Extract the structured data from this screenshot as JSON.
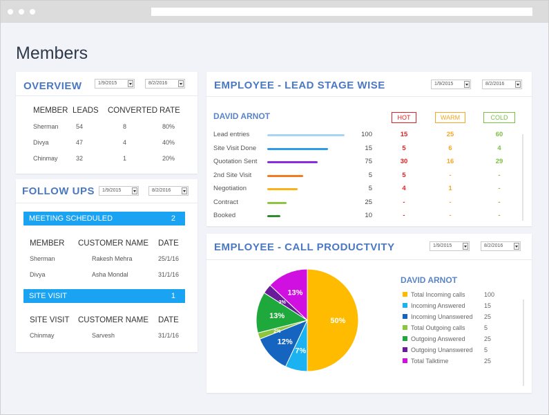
{
  "page": {
    "title": "Members"
  },
  "overview": {
    "title": "OVERVIEW",
    "date_from": "1/9/2015",
    "date_to": "8/2/2016",
    "headers": [
      "MEMBER",
      "LEADS",
      "CONVERTED",
      "RATE"
    ],
    "rows": [
      [
        "Sherman",
        "54",
        "8",
        "80%"
      ],
      [
        "Divya",
        "47",
        "4",
        "40%"
      ],
      [
        "Chinmay",
        "32",
        "1",
        "20%"
      ]
    ]
  },
  "followups": {
    "title": "FOLLOW UPS",
    "date_from": "1/9/2015",
    "date_to": "8/2/2016",
    "meeting": {
      "label": "MEETING SCHEDULED",
      "count": "2",
      "headers": [
        "MEMBER",
        "CUSTOMER  NAME",
        "DATE"
      ],
      "rows": [
        [
          "Sherman",
          "Rakesh Mehra",
          "25/1/16"
        ],
        [
          "Divya",
          "Asha Mondal",
          "31/1/16"
        ]
      ]
    },
    "site_visit": {
      "label": "SITE VISIT",
      "count": "1",
      "headers": [
        "SITE VISIT",
        "CUSTOMER  NAME",
        "DATE"
      ],
      "rows": [
        [
          "Chinmay",
          "Sarvesh",
          "31/1/16"
        ]
      ]
    }
  },
  "lead_stage": {
    "title": "EMPLOYEE  - LEAD STAGE WISE",
    "date_from": "1/9/2015",
    "date_to": "8/2/2016",
    "employee": "DAVID ARNOT",
    "heat_headers": [
      "HOT",
      "WARM",
      "COLD"
    ],
    "heat_colors": [
      "#e02020",
      "#f5a623",
      "#7ac143"
    ],
    "stages": [
      {
        "label": "Lead entries",
        "value": "100",
        "bar": 1.0,
        "color": "#a8d4f5",
        "hot": "15",
        "warm": "25",
        "cold": "60"
      },
      {
        "label": "Site Visit Done",
        "value": "15",
        "bar": 0.79,
        "color": "#2f9be8",
        "hot": "5",
        "warm": "6",
        "cold": "4"
      },
      {
        "label": "Quotation Sent",
        "value": "75",
        "bar": 0.65,
        "color": "#8a2be2",
        "hot": "30",
        "warm": "16",
        "cold": "29"
      },
      {
        "label": "2nd Site Visit",
        "value": "5",
        "bar": 0.46,
        "color": "#f47a20",
        "hot": "5",
        "warm": "-",
        "cold": "-"
      },
      {
        "label": "Negotiation",
        "value": "5",
        "bar": 0.39,
        "color": "#fbb217",
        "hot": "4",
        "warm": "1",
        "cold": "-"
      },
      {
        "label": "Contract",
        "value": "25",
        "bar": 0.25,
        "color": "#8cc63f",
        "hot": "-",
        "warm": "-",
        "cold": "-"
      },
      {
        "label": "Booked",
        "value": "10",
        "bar": 0.17,
        "color": "#2e8b2e",
        "hot": "-",
        "warm": "-",
        "cold": "-"
      }
    ]
  },
  "call_productivity": {
    "title": "EMPLOYEE  - CALL PRODUCTVITY",
    "date_from": "1/9/2015",
    "date_to": "8/2/2016",
    "employee": "DAVID ARNOT",
    "legend": [
      {
        "label": "Total Incoming calls",
        "value": "100",
        "color": "#ffbb00"
      },
      {
        "label": "Incoming Answered",
        "value": "15",
        "color": "#1ab2f0"
      },
      {
        "label": "Incoming Unanswered",
        "value": "25",
        "color": "#1565c0"
      },
      {
        "label": "Total Outgoing calls",
        "value": "5",
        "color": "#8cc63f"
      },
      {
        "label": "Outgoing Answered",
        "value": "25",
        "color": "#1fa83b"
      },
      {
        "label": "Outgoing Unanswered",
        "value": "5",
        "color": "#6a1b9a"
      },
      {
        "label": "Total Talktime",
        "value": "25",
        "color": "#d010e0"
      }
    ],
    "pie": [
      {
        "pct": 50,
        "label": "50%",
        "color": "#ffbb00"
      },
      {
        "pct": 7,
        "label": "7%",
        "color": "#1ab2f0"
      },
      {
        "pct": 12,
        "label": "12%",
        "color": "#1565c0"
      },
      {
        "pct": 2,
        "label": "2%",
        "color": "#8cc63f"
      },
      {
        "pct": 13,
        "label": "13%",
        "color": "#1fa83b"
      },
      {
        "pct": 3,
        "label": "3%",
        "color": "#6a1b9a"
      },
      {
        "pct": 13,
        "label": "13%",
        "color": "#d010e0"
      }
    ]
  }
}
